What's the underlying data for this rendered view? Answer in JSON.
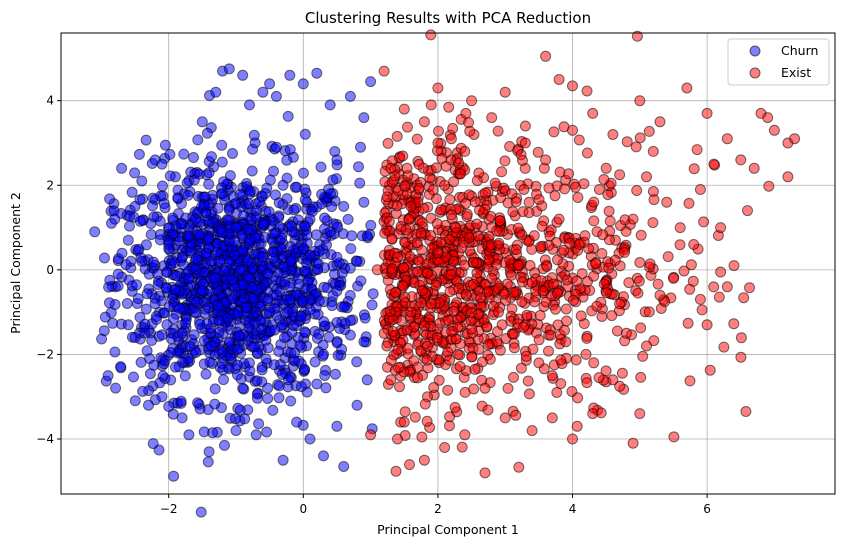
{
  "chart_data": {
    "type": "scatter",
    "title": "Clustering Results with PCA Reduction",
    "xlabel": "Principal Component 1",
    "ylabel": "Principal Component 2",
    "xlim": [
      -3.6,
      7.9
    ],
    "ylim": [
      -5.3,
      5.6
    ],
    "xticks": [
      -2,
      0,
      2,
      4,
      6
    ],
    "yticks": [
      -4,
      -2,
      0,
      2,
      4
    ],
    "grid": true,
    "legend_position": "top-right",
    "series": [
      {
        "name": "Churn",
        "color": "#0000ff",
        "points": [
          [
            -3.1,
            0.9
          ],
          [
            -2.9,
            -2.5
          ],
          [
            -2.85,
            1.1
          ],
          [
            -2.8,
            1.2
          ],
          [
            -2.7,
            2.4
          ],
          [
            -2.75,
            -0.1
          ],
          [
            -2.6,
            -1.3
          ],
          [
            -2.6,
            0.7
          ],
          [
            -2.5,
            1.5
          ],
          [
            -2.4,
            2.1
          ],
          [
            -2.3,
            -3.2
          ],
          [
            -2.2,
            2.6
          ],
          [
            -2.1,
            2.5
          ],
          [
            -2.1,
            -3.0
          ],
          [
            -1.9,
            2.2
          ],
          [
            -1.8,
            -3.5
          ],
          [
            -1.7,
            -3.9
          ],
          [
            -1.5,
            3.5
          ],
          [
            -1.4,
            -4.3
          ],
          [
            -1.3,
            4.2
          ],
          [
            -1.2,
            4.7
          ],
          [
            -1.1,
            4.75
          ],
          [
            -1.0,
            -3.8
          ],
          [
            -0.9,
            4.6
          ],
          [
            -0.8,
            3.9
          ],
          [
            -0.7,
            -3.9
          ],
          [
            -0.6,
            4.2
          ],
          [
            -0.5,
            4.4
          ],
          [
            -0.4,
            4.1
          ],
          [
            -0.3,
            -4.5
          ],
          [
            -0.2,
            4.6
          ],
          [
            -0.1,
            -3.6
          ],
          [
            0.0,
            4.4
          ],
          [
            0.1,
            -4.0
          ],
          [
            0.2,
            4.65
          ],
          [
            0.3,
            -4.4
          ],
          [
            0.4,
            3.9
          ],
          [
            0.5,
            -3.7
          ],
          [
            0.6,
            -4.65
          ],
          [
            0.7,
            4.1
          ],
          [
            0.8,
            -3.2
          ],
          [
            0.9,
            3.6
          ],
          [
            1.0,
            4.45
          ],
          [
            0.95,
            -2.6
          ],
          [
            0.85,
            2.9
          ],
          [
            0.9,
            -1.7
          ],
          [
            0.95,
            0.8
          ],
          [
            0.9,
            1.6
          ],
          [
            -2.0,
            0.5
          ],
          [
            -1.5,
            -0.5
          ],
          [
            -1.0,
            1.0
          ],
          [
            -0.5,
            -1.0
          ],
          [
            0.0,
            0.5
          ],
          [
            0.5,
            -0.5
          ],
          [
            -1.8,
            -1.5
          ],
          [
            -1.2,
            1.8
          ],
          [
            -0.8,
            -2.2
          ],
          [
            -0.3,
            2.0
          ],
          [
            0.3,
            -2.0
          ],
          [
            0.6,
            1.5
          ],
          [
            -2.2,
            -0.8
          ],
          [
            -1.6,
            1.2
          ],
          [
            -1.1,
            -1.7
          ],
          [
            -0.6,
            0.3
          ],
          [
            -0.2,
            -0.4
          ],
          [
            0.4,
            0.9
          ],
          [
            0.7,
            -1.2
          ],
          [
            -2.4,
            0.2
          ],
          [
            -1.9,
            -2.3
          ],
          [
            -1.4,
            2.3
          ],
          [
            -0.9,
            -2.8
          ],
          [
            -0.4,
            2.9
          ],
          [
            0.2,
            -2.7
          ],
          [
            0.5,
            2.6
          ],
          [
            -2.5,
            -1.6
          ],
          [
            -1.3,
            -0.2
          ],
          [
            -0.7,
            1.4
          ],
          [
            0.1,
            1.2
          ],
          [
            0.8,
            0.2
          ],
          [
            -1.7,
            0.8
          ]
        ]
      },
      {
        "name": "Exist",
        "color": "#ff0000",
        "points": [
          [
            1.2,
            4.7
          ],
          [
            1.5,
            3.8
          ],
          [
            1.8,
            3.5
          ],
          [
            2.0,
            4.3
          ],
          [
            2.2,
            3.1
          ],
          [
            2.5,
            4.0
          ],
          [
            2.8,
            3.6
          ],
          [
            3.0,
            4.2
          ],
          [
            3.3,
            3.4
          ],
          [
            3.6,
            5.05
          ],
          [
            3.8,
            4.5
          ],
          [
            4.0,
            4.35
          ],
          [
            4.3,
            3.7
          ],
          [
            4.6,
            3.2
          ],
          [
            5.0,
            4.0
          ],
          [
            5.3,
            3.5
          ],
          [
            5.7,
            4.3
          ],
          [
            6.0,
            3.7
          ],
          [
            6.3,
            3.1
          ],
          [
            6.5,
            2.6
          ],
          [
            6.8,
            3.7
          ],
          [
            7.0,
            3.3
          ],
          [
            7.2,
            3.0
          ],
          [
            7.3,
            3.1
          ],
          [
            7.2,
            2.2
          ],
          [
            6.9,
            3.6
          ],
          [
            6.1,
            2.5
          ],
          [
            6.6,
            1.4
          ],
          [
            6.4,
            0.1
          ],
          [
            6.0,
            -1.3
          ],
          [
            5.9,
            1.9
          ],
          [
            5.6,
            1.0
          ],
          [
            5.3,
            -0.6
          ],
          [
            5.1,
            -1.8
          ],
          [
            5.0,
            -3.4
          ],
          [
            4.9,
            -4.1
          ],
          [
            4.6,
            -2.6
          ],
          [
            4.3,
            -3.4
          ],
          [
            4.0,
            -4.0
          ],
          [
            3.7,
            -3.5
          ],
          [
            3.4,
            -3.8
          ],
          [
            3.0,
            -3.5
          ],
          [
            2.7,
            -4.8
          ],
          [
            2.4,
            -3.9
          ],
          [
            2.1,
            -4.2
          ],
          [
            1.8,
            -4.5
          ],
          [
            1.5,
            -3.6
          ],
          [
            1.3,
            -2.6
          ],
          [
            1.2,
            -1.5
          ],
          [
            1.4,
            0.3
          ],
          [
            1.6,
            1.5
          ],
          [
            1.9,
            -0.8
          ],
          [
            2.1,
            2.0
          ],
          [
            2.3,
            -2.0
          ],
          [
            2.6,
            0.8
          ],
          [
            2.9,
            -1.0
          ],
          [
            3.1,
            1.8
          ],
          [
            3.4,
            -0.3
          ],
          [
            3.6,
            2.6
          ],
          [
            3.9,
            -1.7
          ],
          [
            4.1,
            0.6
          ],
          [
            4.4,
            1.9
          ],
          [
            4.7,
            -0.8
          ],
          [
            4.9,
            1.2
          ],
          [
            5.2,
            2.8
          ],
          [
            5.5,
            -0.2
          ],
          [
            5.8,
            0.6
          ],
          [
            6.2,
            1.0
          ],
          [
            1.1,
            0.0
          ],
          [
            1.3,
            2.4
          ],
          [
            1.7,
            -2.3
          ],
          [
            2.0,
            0.4
          ],
          [
            2.4,
            2.8
          ],
          [
            2.7,
            -2.8
          ],
          [
            3.2,
            0.1
          ],
          [
            3.5,
            -2.2
          ],
          [
            3.8,
            1.2
          ],
          [
            4.2,
            -2.0
          ],
          [
            4.5,
            2.4
          ],
          [
            4.8,
            -1.5
          ],
          [
            5.4,
            1.6
          ],
          [
            1.6,
            -1.0
          ],
          [
            2.2,
            1.3
          ],
          [
            2.8,
            -0.2
          ],
          [
            3.3,
            3.0
          ],
          [
            4.0,
            3.3
          ],
          [
            5.1,
            2.2
          ],
          [
            5.9,
            -0.7
          ],
          [
            6.3,
            -0.4
          ],
          [
            1.0,
            -3.9
          ],
          [
            1.4,
            -4.0
          ],
          [
            3.7,
            -2.5
          ],
          [
            2.5,
            -1.4
          ],
          [
            2.0,
            3.0
          ],
          [
            6.7,
            2.4
          ],
          [
            1.9,
            3.9
          ]
        ]
      }
    ]
  }
}
